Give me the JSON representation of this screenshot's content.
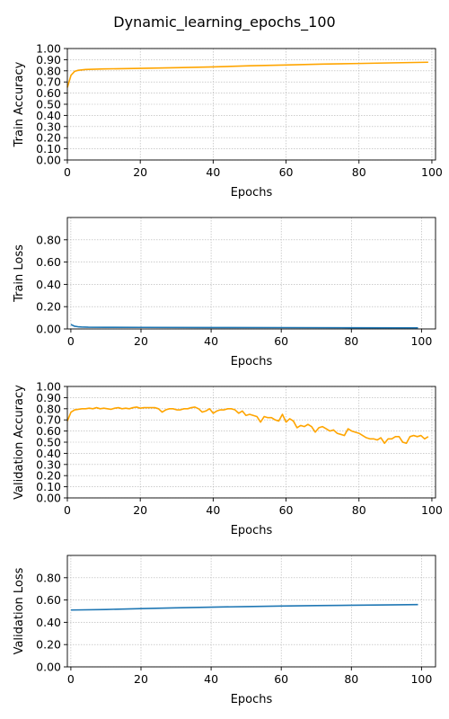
{
  "figure_title": "Dynamic_learning_epochs_100",
  "colors": {
    "accuracy": "#ffa500",
    "loss": "#1f77b4"
  },
  "chart_data": [
    {
      "type": "line",
      "name": "train-accuracy",
      "ylabel": "Train Accuracy",
      "xlabel": "Epochs",
      "xlim": [
        0,
        101
      ],
      "ylim": [
        0,
        1
      ],
      "xticks": [
        0,
        20,
        40,
        60,
        80,
        100
      ],
      "xtick_labels": [
        "0",
        "20",
        "40",
        "60",
        "80",
        "100"
      ],
      "yticks": [
        0,
        0.1,
        0.2,
        0.3,
        0.4,
        0.5,
        0.6,
        0.7,
        0.8,
        0.9,
        1.0
      ],
      "ytick_labels": [
        "0.00",
        "0.10",
        "0.20",
        "0.30",
        "0.40",
        "0.50",
        "0.60",
        "0.70",
        "0.80",
        "0.90",
        "1.00"
      ],
      "grid": true,
      "color": "accuracy",
      "x": [
        0,
        1,
        2,
        3,
        5,
        10,
        20,
        30,
        40,
        50,
        60,
        70,
        80,
        90,
        99
      ],
      "y": [
        0.65,
        0.76,
        0.795,
        0.805,
        0.812,
        0.817,
        0.822,
        0.828,
        0.835,
        0.845,
        0.852,
        0.86,
        0.866,
        0.872,
        0.877
      ]
    },
    {
      "type": "line",
      "name": "train-loss",
      "ylabel": "Train Loss",
      "xlabel": "Epochs",
      "xlim": [
        -1,
        104
      ],
      "ylim": [
        0,
        1
      ],
      "xticks": [
        0,
        20,
        40,
        60,
        80,
        100
      ],
      "xtick_labels": [
        "0",
        "20",
        "40",
        "60",
        "80",
        "100"
      ],
      "yticks": [
        0,
        0.2,
        0.4,
        0.6,
        0.8
      ],
      "ytick_labels": [
        "0.00",
        "0.20",
        "0.40",
        "0.60",
        "0.80"
      ],
      "grid": true,
      "color": "loss",
      "x": [
        0,
        1,
        2,
        3,
        5,
        10,
        20,
        40,
        60,
        80,
        99
      ],
      "y": [
        0.04,
        0.025,
        0.02,
        0.018,
        0.016,
        0.015,
        0.014,
        0.013,
        0.012,
        0.011,
        0.01
      ]
    },
    {
      "type": "line",
      "name": "validation-accuracy",
      "ylabel": "Validation Accuracy",
      "xlabel": "Epochs",
      "xlim": [
        0,
        101
      ],
      "ylim": [
        0,
        1
      ],
      "xticks": [
        0,
        20,
        40,
        60,
        80,
        100
      ],
      "xtick_labels": [
        "0",
        "20",
        "40",
        "60",
        "80",
        "100"
      ],
      "yticks": [
        0,
        0.1,
        0.2,
        0.3,
        0.4,
        0.5,
        0.6,
        0.7,
        0.8,
        0.9,
        1.0
      ],
      "ytick_labels": [
        "0.00",
        "0.10",
        "0.20",
        "0.30",
        "0.40",
        "0.50",
        "0.60",
        "0.70",
        "0.80",
        "0.90",
        "1.00"
      ],
      "grid": true,
      "color": "accuracy",
      "x": [
        0,
        1,
        2,
        3,
        4,
        5,
        6,
        7,
        8,
        9,
        10,
        11,
        12,
        13,
        14,
        15,
        16,
        17,
        18,
        19,
        20,
        21,
        22,
        23,
        24,
        25,
        26,
        27,
        28,
        29,
        30,
        31,
        32,
        33,
        34,
        35,
        36,
        37,
        38,
        39,
        40,
        41,
        42,
        43,
        44,
        45,
        46,
        47,
        48,
        49,
        50,
        51,
        52,
        53,
        54,
        55,
        56,
        57,
        58,
        59,
        60,
        61,
        62,
        63,
        64,
        65,
        66,
        67,
        68,
        69,
        70,
        71,
        72,
        73,
        74,
        75,
        76,
        77,
        78,
        79,
        80,
        81,
        82,
        83,
        84,
        85,
        86,
        87,
        88,
        89,
        90,
        91,
        92,
        93,
        94,
        95,
        96,
        97,
        98,
        99
      ],
      "y": [
        0.69,
        0.77,
        0.79,
        0.795,
        0.8,
        0.8,
        0.805,
        0.8,
        0.81,
        0.8,
        0.805,
        0.8,
        0.795,
        0.805,
        0.81,
        0.8,
        0.805,
        0.8,
        0.81,
        0.815,
        0.805,
        0.81,
        0.81,
        0.81,
        0.81,
        0.8,
        0.77,
        0.79,
        0.8,
        0.8,
        0.79,
        0.79,
        0.8,
        0.8,
        0.81,
        0.815,
        0.8,
        0.77,
        0.78,
        0.8,
        0.76,
        0.78,
        0.79,
        0.79,
        0.8,
        0.8,
        0.79,
        0.76,
        0.78,
        0.74,
        0.75,
        0.74,
        0.73,
        0.68,
        0.73,
        0.72,
        0.72,
        0.7,
        0.69,
        0.75,
        0.68,
        0.71,
        0.69,
        0.63,
        0.65,
        0.64,
        0.66,
        0.64,
        0.59,
        0.63,
        0.64,
        0.62,
        0.6,
        0.61,
        0.58,
        0.57,
        0.56,
        0.62,
        0.6,
        0.59,
        0.58,
        0.56,
        0.54,
        0.53,
        0.53,
        0.52,
        0.54,
        0.49,
        0.53,
        0.53,
        0.55,
        0.55,
        0.5,
        0.49,
        0.55,
        0.56,
        0.55,
        0.56,
        0.53,
        0.55
      ]
    },
    {
      "type": "line",
      "name": "validation-loss",
      "ylabel": "Validation Loss",
      "xlabel": "Epochs",
      "xlim": [
        -1,
        104
      ],
      "ylim": [
        0,
        1
      ],
      "xticks": [
        0,
        20,
        40,
        60,
        80,
        100
      ],
      "xtick_labels": [
        "0",
        "20",
        "40",
        "60",
        "80",
        "100"
      ],
      "yticks": [
        0,
        0.2,
        0.4,
        0.6,
        0.8
      ],
      "ytick_labels": [
        "0.00",
        "0.20",
        "0.40",
        "0.60",
        "0.80"
      ],
      "grid": true,
      "color": "loss",
      "x": [
        0,
        10,
        20,
        30,
        40,
        50,
        60,
        70,
        80,
        90,
        99
      ],
      "y": [
        0.51,
        0.515,
        0.523,
        0.53,
        0.536,
        0.541,
        0.546,
        0.55,
        0.553,
        0.556,
        0.559
      ]
    }
  ]
}
